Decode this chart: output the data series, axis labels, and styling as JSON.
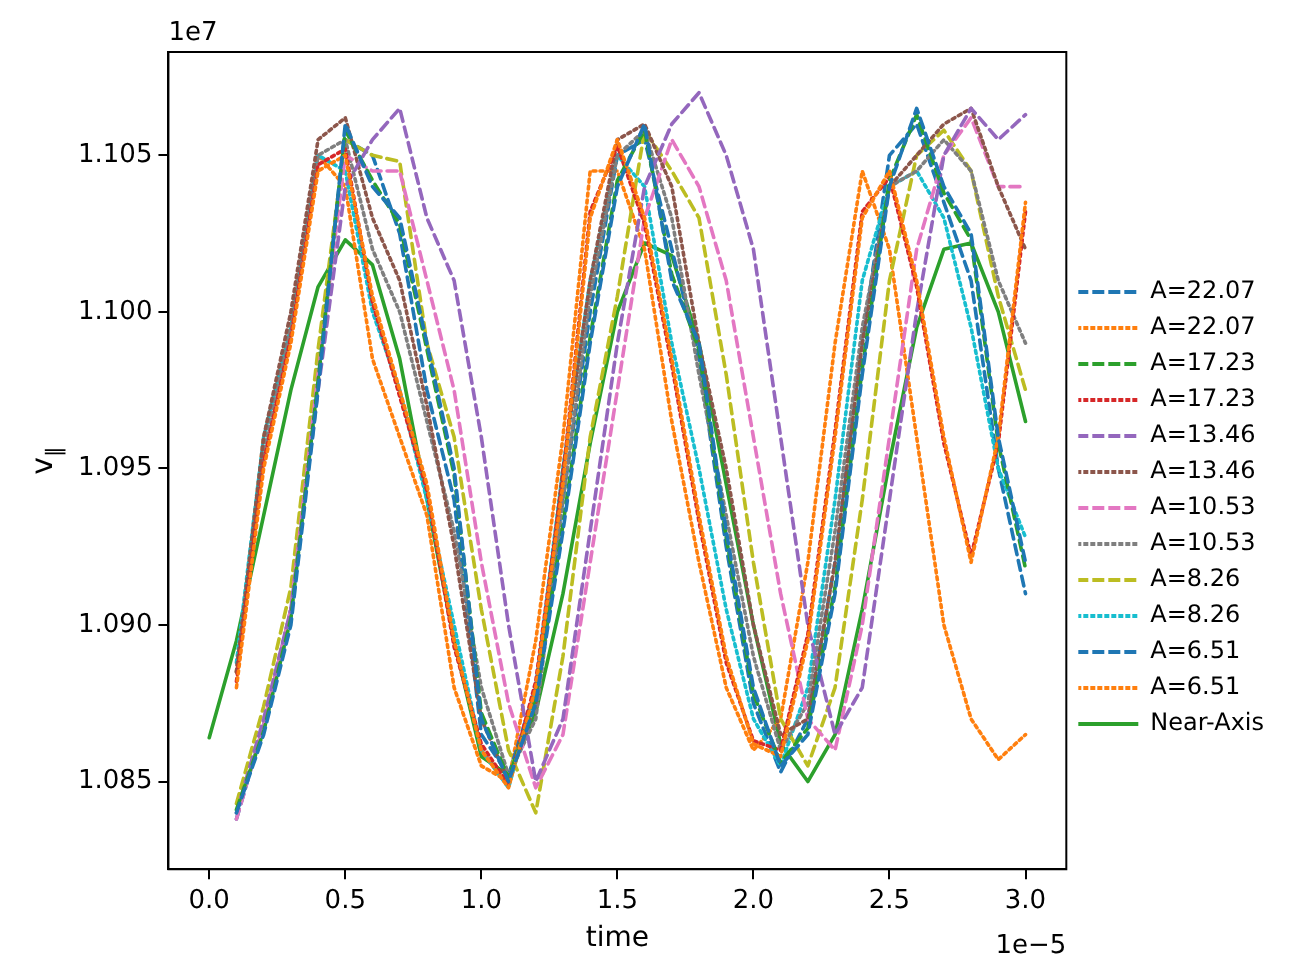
{
  "chart_data": {
    "type": "line",
    "xlabel": "time",
    "ylabel": "v$_{∥}$",
    "annotations": [
      "1e7",
      "1e−5"
    ],
    "x": [
      0,
      0.1,
      0.2,
      0.3,
      0.4,
      0.5,
      0.6,
      0.7,
      0.8,
      0.9,
      1.0,
      1.1,
      1.2,
      1.3,
      1.4,
      1.5,
      1.6,
      1.7,
      1.8,
      1.9,
      2.0,
      2.1,
      2.2,
      2.3,
      2.4,
      2.5,
      2.6,
      2.7,
      2.8,
      2.9,
      3.0
    ],
    "xlim": [
      -0.15,
      3.15
    ],
    "xticks": [
      {
        "value": 0,
        "label": "0.0"
      },
      0.5,
      {
        "value": 1,
        "label": "1.0"
      },
      1.5,
      {
        "value": 2,
        "label": "2.0"
      },
      2.5,
      {
        "value": 3,
        "label": "3.0"
      }
    ],
    "ylim": [
      1.0822,
      1.1083
    ],
    "yticks": [
      {
        "value": 1.085,
        "label": "1.085"
      },
      {
        "value": 1.09,
        "label": "1.090"
      },
      {
        "value": 1.095,
        "label": "1.095"
      },
      {
        "value": 1.1,
        "label": "1.100"
      },
      {
        "value": 1.105,
        "label": "1.105"
      }
    ],
    "grid": false,
    "legend": "right",
    "marker": "none",
    "series": [
      {
        "name": "A=22.07",
        "color": "#1f77b4",
        "line_style": "dashed",
        "values": [
          null,
          1.084,
          1.0865,
          1.09,
          1.0975,
          1.106,
          1.104,
          1.103,
          1.099,
          1.095,
          1.087,
          1.085,
          1.0875,
          1.093,
          1.099,
          1.104,
          1.106,
          1.101,
          1.099,
          1.093,
          1.088,
          1.0855,
          1.0865,
          1.091,
          1.098,
          1.104,
          1.1065,
          1.104,
          1.1025,
          1.096,
          1.092
        ]
      },
      {
        "name": "A=22.07",
        "color": "#ff7f0e",
        "line_style": "dotted",
        "values": [
          null,
          1.088,
          1.095,
          1.099,
          1.1045,
          1.105,
          1.1005,
          1.0975,
          1.0945,
          1.0895,
          1.086,
          1.0848,
          1.088,
          1.0945,
          1.103,
          1.1055,
          1.103,
          1.0985,
          1.0935,
          1.089,
          1.0862,
          1.0858,
          1.0895,
          1.096,
          1.103,
          1.1045,
          1.101,
          1.096,
          1.092,
          1.096,
          1.1035
        ]
      },
      {
        "name": "A=17.23",
        "color": "#2ca02c",
        "line_style": "dashed",
        "values": [
          null,
          1.0841,
          1.0866,
          1.0902,
          1.0978,
          1.1058,
          1.1042,
          1.1028,
          1.0988,
          1.0948,
          1.0872,
          1.0851,
          1.0877,
          1.0932,
          1.0992,
          1.1042,
          1.1058,
          1.1012,
          1.0988,
          1.0928,
          1.0878,
          1.0856,
          1.0867,
          1.0912,
          1.0982,
          1.1042,
          1.1063,
          1.1038,
          1.1023,
          1.0958,
          1.0918
        ]
      },
      {
        "name": "A=17.23",
        "color": "#d62728",
        "line_style": "dotted",
        "values": [
          null,
          1.0882,
          1.0952,
          1.0992,
          1.1047,
          1.1052,
          1.1003,
          1.0973,
          1.0943,
          1.0893,
          1.0862,
          1.0849,
          1.0882,
          1.0947,
          1.1032,
          1.1053,
          1.1028,
          1.0983,
          1.0933,
          1.0888,
          1.0863,
          1.086,
          1.0897,
          1.0962,
          1.1032,
          1.1043,
          1.1008,
          1.0958,
          1.0922,
          1.0958,
          1.1032
        ]
      },
      {
        "name": "A=13.46",
        "color": "#9467bd",
        "line_style": "dashed",
        "values": [
          null,
          1.084,
          1.087,
          1.0905,
          1.0975,
          1.104,
          1.1055,
          1.1065,
          1.103,
          1.101,
          1.096,
          1.09,
          1.085,
          1.087,
          1.093,
          1.099,
          1.104,
          1.106,
          1.107,
          1.105,
          1.102,
          1.096,
          1.09,
          1.0865,
          1.088,
          1.094,
          1.1,
          1.105,
          1.1065,
          1.1055,
          1.1063
        ]
      },
      {
        "name": "A=13.46",
        "color": "#8c564b",
        "line_style": "dotted",
        "values": [
          null,
          1.0885,
          1.096,
          1.1,
          1.1055,
          1.1062,
          1.103,
          1.101,
          1.097,
          1.0925,
          1.087,
          1.085,
          1.0875,
          1.095,
          1.101,
          1.1055,
          1.106,
          1.104,
          1.099,
          1.095,
          1.09,
          1.0865,
          1.087,
          1.092,
          1.099,
          1.104,
          1.105,
          1.106,
          1.1065,
          1.104,
          1.102
        ]
      },
      {
        "name": "A=10.53",
        "color": "#e377c2",
        "line_style": "dashed",
        "values": [
          null,
          1.0838,
          1.0868,
          1.0905,
          1.098,
          1.105,
          1.1045,
          1.1045,
          1.101,
          1.0975,
          1.092,
          1.0875,
          1.0848,
          1.0865,
          1.092,
          1.0975,
          1.103,
          1.1055,
          1.104,
          1.101,
          1.096,
          1.091,
          1.087,
          1.086,
          1.09,
          1.096,
          1.102,
          1.105,
          1.1062,
          1.104,
          1.104
        ]
      },
      {
        "name": "A=10.53",
        "color": "#7f7f7f",
        "line_style": "dotted",
        "values": [
          null,
          1.0885,
          1.0955,
          1.0995,
          1.105,
          1.1055,
          1.102,
          1.1,
          1.0965,
          1.093,
          1.088,
          1.0852,
          1.087,
          1.094,
          1.1005,
          1.105,
          1.1058,
          1.103,
          1.098,
          1.0935,
          1.089,
          1.086,
          1.0875,
          1.093,
          1.0995,
          1.104,
          1.1045,
          1.1055,
          1.1045,
          1.101,
          1.099
        ]
      },
      {
        "name": "A=8.26",
        "color": "#bcbd22",
        "line_style": "dashed",
        "values": [
          null,
          1.0843,
          1.0874,
          1.0912,
          1.0988,
          1.1055,
          1.105,
          1.1048,
          1.099,
          1.096,
          1.0905,
          1.086,
          1.084,
          1.089,
          1.096,
          1.1005,
          1.1058,
          1.1045,
          1.103,
          1.098,
          1.092,
          1.087,
          1.0855,
          1.088,
          1.094,
          1.101,
          1.105,
          1.1058,
          1.1045,
          1.1005,
          1.0975
        ]
      },
      {
        "name": "A=8.26",
        "color": "#17becf",
        "line_style": "dotted",
        "values": [
          null,
          1.0888,
          1.096,
          1.0995,
          1.105,
          1.1045,
          1.1,
          1.0975,
          1.094,
          1.09,
          1.086,
          1.0848,
          1.088,
          1.095,
          1.101,
          1.105,
          1.104,
          1.099,
          1.095,
          1.0905,
          1.087,
          1.0855,
          1.088,
          1.094,
          1.101,
          1.104,
          1.1045,
          1.103,
          1.0995,
          1.095,
          1.0928
        ]
      },
      {
        "name": "A=6.51",
        "color": "#1f77b4",
        "line_style": "dashed",
        "values": [
          null,
          1.0838,
          1.0868,
          1.0905,
          1.0985,
          1.1055,
          1.105,
          1.1025,
          1.0975,
          1.094,
          1.0865,
          1.0852,
          1.088,
          1.094,
          1.1,
          1.105,
          1.1055,
          1.102,
          1.0985,
          1.0925,
          1.0875,
          1.0853,
          1.087,
          1.092,
          1.099,
          1.105,
          1.106,
          1.1035,
          1.101,
          1.095,
          1.091
        ]
      },
      {
        "name": "A=6.51",
        "color": "#ff7f0e",
        "line_style": "dotted",
        "values": [
          null,
          1.0885,
          1.096,
          1.0995,
          1.105,
          1.104,
          1.0985,
          1.096,
          1.0935,
          1.088,
          1.0855,
          1.085,
          1.0895,
          1.096,
          1.1045,
          1.1045,
          1.102,
          1.0965,
          1.092,
          1.088,
          1.086,
          1.087,
          1.092,
          1.099,
          1.1045,
          1.102,
          1.096,
          1.09,
          1.087,
          1.0857,
          1.0865
        ]
      },
      {
        "name": "Near-Axis",
        "color": "#2ca02c",
        "line_style": "solid",
        "values": [
          1.0864,
          1.0895,
          1.0935,
          1.0975,
          1.1008,
          1.1023,
          1.1015,
          1.0985,
          1.094,
          1.0895,
          1.0858,
          1.0852,
          1.0872,
          1.091,
          1.0958,
          1.1,
          1.1022,
          1.1018,
          1.099,
          1.0945,
          1.09,
          1.0862,
          1.085,
          1.0865,
          1.0905,
          1.0952,
          1.0995,
          1.102,
          1.1022,
          1.1,
          1.0965
        ]
      }
    ]
  }
}
